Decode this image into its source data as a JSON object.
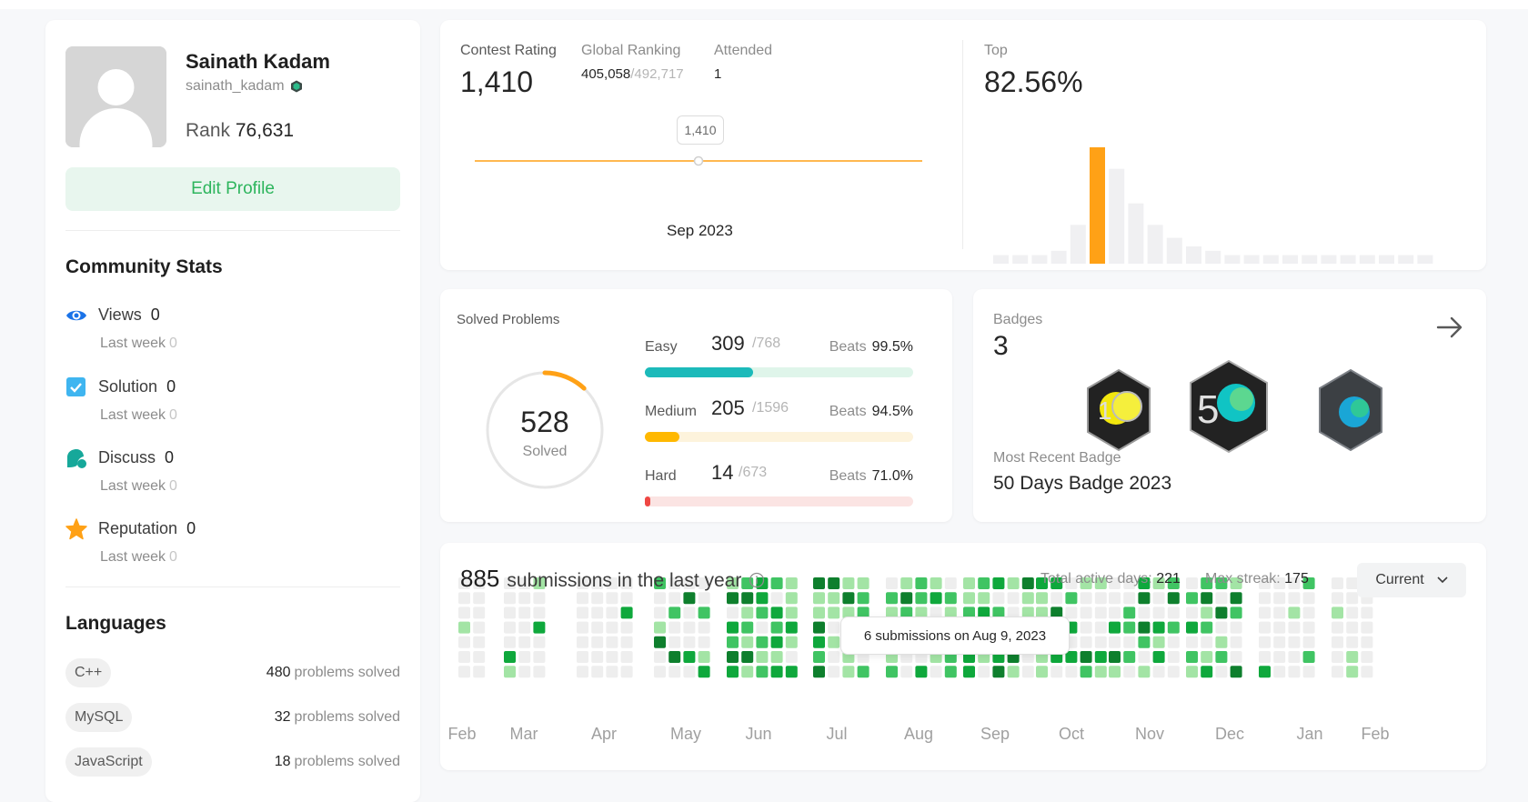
{
  "profile": {
    "name": "Sainath Kadam",
    "username": "sainath_kadam",
    "rank_label": "Rank",
    "rank_value": "76,631",
    "edit_button": "Edit Profile"
  },
  "community": {
    "title": "Community Stats",
    "stats": [
      {
        "label": "Views",
        "value": "0",
        "sub_label": "Last week",
        "sub_value": "0",
        "icon": "eye-icon"
      },
      {
        "label": "Solution",
        "value": "0",
        "sub_label": "Last week",
        "sub_value": "0",
        "icon": "check-square-icon"
      },
      {
        "label": "Discuss",
        "value": "0",
        "sub_label": "Last week",
        "sub_value": "0",
        "icon": "chat-bubble-icon"
      },
      {
        "label": "Reputation",
        "value": "0",
        "sub_label": "Last week",
        "sub_value": "0",
        "icon": "star-icon"
      }
    ]
  },
  "languages": {
    "title": "Languages",
    "items": [
      {
        "name": "C++",
        "count": "480",
        "suffix": "problems solved"
      },
      {
        "name": "MySQL",
        "count": "32",
        "suffix": "problems solved"
      },
      {
        "name": "JavaScript",
        "count": "18",
        "suffix": "problems solved"
      }
    ]
  },
  "contest": {
    "rating_label": "Contest Rating",
    "rating_value": "1,410",
    "global_label": "Global Ranking",
    "global_rank": "405,058",
    "global_total": "/492,717",
    "attended_label": "Attended",
    "attended_value": "1",
    "tooltip_value": "1,410",
    "date_label": "Sep 2023",
    "top_label": "Top",
    "top_value": "82.56%"
  },
  "chart_data": {
    "type": "bar",
    "title": "",
    "xlabel": "",
    "ylabel": "",
    "values": [
      2,
      2,
      2,
      3,
      9,
      27,
      22,
      14,
      9,
      6,
      4,
      3,
      2,
      2,
      2,
      2,
      2,
      2,
      2,
      2,
      2,
      2,
      2
    ],
    "highlight_index": 5,
    "colors": {
      "highlight": "#ffa116",
      "normal": "#f0f0f2"
    }
  },
  "solved": {
    "title": "Solved Problems",
    "total": "528",
    "total_label": "Solved",
    "ring_fraction": 0.12,
    "difficulties": [
      {
        "name": "Easy",
        "solved": "309",
        "total": "/768",
        "beats_label": "Beats",
        "beats": "99.5%",
        "fraction": 0.402,
        "fill": "#1cbaba",
        "track": "#dff5ea"
      },
      {
        "name": "Medium",
        "solved": "205",
        "total": "/1596",
        "beats_label": "Beats",
        "beats": "94.5%",
        "fraction": 0.128,
        "fill": "#ffb800",
        "track": "#fdf3dc"
      },
      {
        "name": "Hard",
        "solved": "14",
        "total": "/673",
        "beats_label": "Beats",
        "beats": "71.0%",
        "fraction": 0.021,
        "fill": "#ef4743",
        "track": "#fbe4e3"
      }
    ]
  },
  "badges": {
    "title": "Badges",
    "count": "3",
    "recent_label": "Most Recent Badge",
    "recent_name": "50 Days Badge 2023"
  },
  "submissions": {
    "count": "885",
    "text": "submissions in the last year",
    "active_label": "Total active days:",
    "active_value": "221",
    "streak_label": "Max streak:",
    "streak_value": "175",
    "dropdown": "Current",
    "tooltip": "6 submissions on Aug 9, 2023",
    "months": [
      "Feb",
      "Mar",
      "Apr",
      "May",
      "Jun",
      "Jul",
      "Aug",
      "Sep",
      "Oct",
      "Nov",
      "Dec",
      "Jan",
      "Feb"
    ]
  }
}
